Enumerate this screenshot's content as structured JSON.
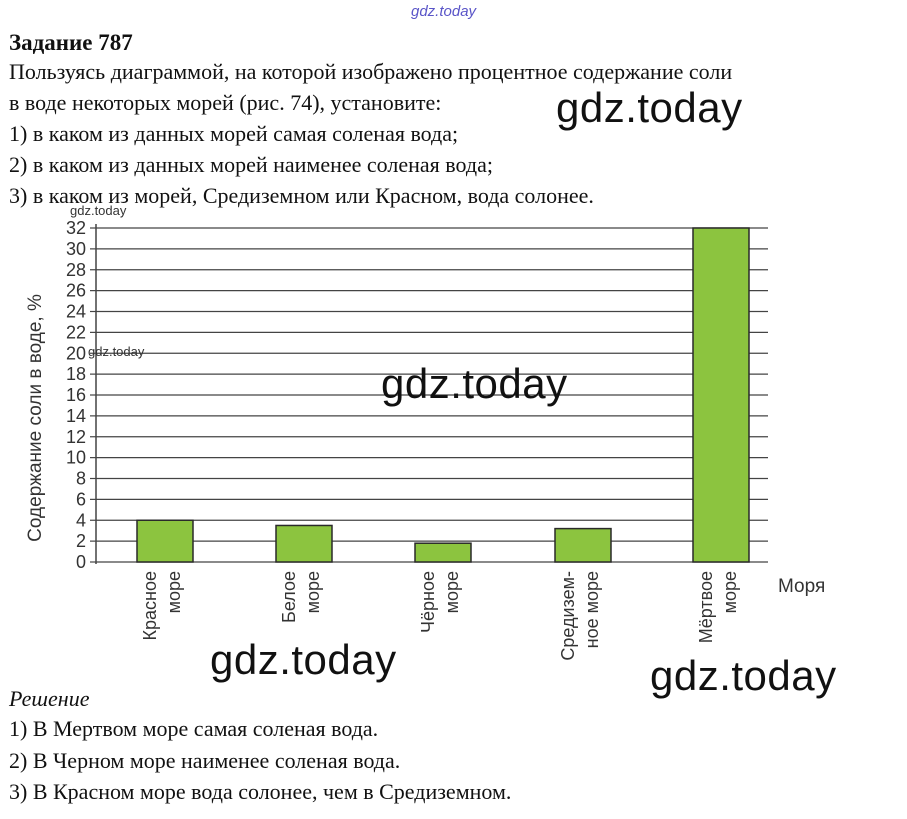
{
  "watermarks": {
    "top": "gdz.today",
    "main": "gdz.today",
    "small": "gdz.today"
  },
  "task": {
    "title": "Задание 787",
    "lines": [
      "Пользуясь диаграммой, на которой изображено процентное содержание соли",
      "в воде некоторых морей (рис. 74), установите:",
      "1) в каком из данных морей самая соленая вода;",
      "2) в каком из данных морей наименее соленая вода;",
      "3) в каком из морей, Средиземном или Красном, вода солонее."
    ]
  },
  "solution": {
    "title": "Решение",
    "lines": [
      "1) В Мертвом море самая соленая вода.",
      "2) В Черном море наименее соленая вода.",
      "3) В Красном море вода солонее, чем в Средиземном."
    ]
  },
  "chart_data": {
    "type": "bar",
    "categories": [
      [
        "Красное",
        "море"
      ],
      [
        "Белое",
        "море"
      ],
      [
        "Чёрное",
        "море"
      ],
      [
        "Средизем-",
        "ное море"
      ],
      [
        "Мёртвое",
        "море"
      ]
    ],
    "values": [
      4,
      3.5,
      1.8,
      3.2,
      32
    ],
    "ylabel": "Содержание соли в воде, %",
    "xlabel": "Моря",
    "ylim": [
      0,
      32
    ],
    "yticks": [
      0,
      2,
      4,
      6,
      8,
      10,
      12,
      14,
      16,
      18,
      20,
      22,
      24,
      26,
      28,
      30,
      32
    ],
    "grid": true,
    "colors": {
      "bar": "#8cc43f",
      "bar_stroke": "#2a2a2a",
      "grid": "#444444"
    }
  }
}
